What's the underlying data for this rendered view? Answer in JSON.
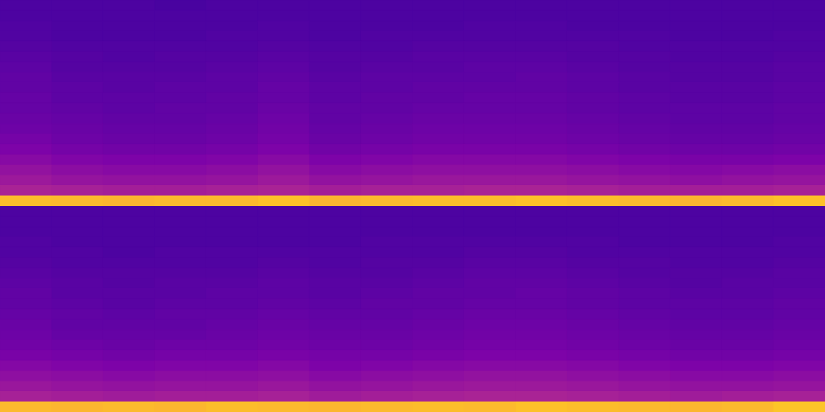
{
  "chart_data": [
    {
      "type": "heatmap",
      "tick_labels": false,
      "color_range": [
        0,
        1
      ],
      "cells": [
        [
          0.13,
          0.13,
          0.13,
          0.12,
          0.13,
          0.13,
          0.13,
          0.13,
          0.13,
          0.13,
          0.13,
          0.13,
          0.13,
          0.13,
          0.13,
          0.13
        ],
        [
          0.13,
          0.13,
          0.13,
          0.13,
          0.13,
          0.13,
          0.13,
          0.13,
          0.13,
          0.13,
          0.13,
          0.13,
          0.13,
          0.13,
          0.13,
          0.13
        ],
        [
          0.14,
          0.13,
          0.13,
          0.13,
          0.13,
          0.14,
          0.13,
          0.13,
          0.13,
          0.14,
          0.14,
          0.13,
          0.13,
          0.13,
          0.13,
          0.13
        ],
        [
          0.14,
          0.13,
          0.13,
          0.13,
          0.14,
          0.14,
          0.13,
          0.14,
          0.14,
          0.14,
          0.14,
          0.14,
          0.14,
          0.13,
          0.13,
          0.14
        ],
        [
          0.15,
          0.14,
          0.14,
          0.14,
          0.14,
          0.15,
          0.14,
          0.14,
          0.15,
          0.15,
          0.15,
          0.15,
          0.14,
          0.14,
          0.14,
          0.14
        ],
        [
          0.16,
          0.15,
          0.14,
          0.15,
          0.15,
          0.16,
          0.15,
          0.15,
          0.16,
          0.16,
          0.16,
          0.15,
          0.15,
          0.14,
          0.14,
          0.15
        ],
        [
          0.17,
          0.15,
          0.15,
          0.15,
          0.16,
          0.17,
          0.15,
          0.16,
          0.16,
          0.17,
          0.17,
          0.16,
          0.15,
          0.15,
          0.15,
          0.16
        ],
        [
          0.18,
          0.16,
          0.16,
          0.16,
          0.17,
          0.18,
          0.16,
          0.17,
          0.17,
          0.17,
          0.18,
          0.17,
          0.16,
          0.15,
          0.15,
          0.16
        ],
        [
          0.18,
          0.17,
          0.16,
          0.17,
          0.17,
          0.19,
          0.17,
          0.17,
          0.18,
          0.18,
          0.18,
          0.17,
          0.16,
          0.16,
          0.16,
          0.17
        ],
        [
          0.19,
          0.17,
          0.17,
          0.17,
          0.18,
          0.19,
          0.17,
          0.18,
          0.18,
          0.19,
          0.19,
          0.18,
          0.17,
          0.16,
          0.16,
          0.17
        ],
        [
          0.19,
          0.18,
          0.17,
          0.18,
          0.18,
          0.2,
          0.18,
          0.18,
          0.19,
          0.19,
          0.19,
          0.18,
          0.17,
          0.17,
          0.17,
          0.18
        ],
        [
          0.2,
          0.19,
          0.18,
          0.18,
          0.19,
          0.21,
          0.18,
          0.19,
          0.2,
          0.2,
          0.2,
          0.19,
          0.18,
          0.17,
          0.17,
          0.18
        ],
        [
          0.21,
          0.2,
          0.19,
          0.19,
          0.2,
          0.22,
          0.19,
          0.2,
          0.21,
          0.21,
          0.21,
          0.2,
          0.19,
          0.18,
          0.18,
          0.19
        ],
        [
          0.23,
          0.21,
          0.2,
          0.2,
          0.21,
          0.23,
          0.2,
          0.21,
          0.22,
          0.22,
          0.22,
          0.21,
          0.2,
          0.19,
          0.19,
          0.2
        ],
        [
          0.25,
          0.23,
          0.22,
          0.22,
          0.23,
          0.25,
          0.22,
          0.23,
          0.24,
          0.24,
          0.24,
          0.23,
          0.22,
          0.21,
          0.21,
          0.22
        ],
        [
          0.28,
          0.26,
          0.25,
          0.25,
          0.26,
          0.28,
          0.25,
          0.26,
          0.27,
          0.27,
          0.27,
          0.26,
          0.25,
          0.24,
          0.24,
          0.25
        ],
        [
          0.31,
          0.29,
          0.28,
          0.28,
          0.29,
          0.31,
          0.28,
          0.29,
          0.3,
          0.3,
          0.3,
          0.29,
          0.28,
          0.27,
          0.28,
          0.29
        ],
        [
          0.34,
          0.32,
          0.31,
          0.31,
          0.32,
          0.34,
          0.31,
          0.32,
          0.33,
          0.33,
          0.33,
          0.32,
          0.31,
          0.3,
          0.31,
          0.32
        ],
        [
          0.38,
          0.37,
          0.36,
          0.36,
          0.37,
          0.38,
          0.36,
          0.37,
          0.37,
          0.38,
          0.38,
          0.37,
          0.36,
          0.36,
          0.36,
          0.37
        ],
        [
          0.86,
          0.85,
          0.84,
          0.85,
          0.85,
          0.87,
          0.84,
          0.85,
          0.86,
          0.86,
          0.87,
          0.86,
          0.85,
          0.84,
          0.85,
          0.87
        ]
      ]
    },
    {
      "type": "heatmap",
      "tick_labels": false,
      "color_range": [
        0,
        1
      ],
      "cells": [
        [
          0.13,
          0.13,
          0.13,
          0.13,
          0.13,
          0.13,
          0.13,
          0.13,
          0.13,
          0.13,
          0.13,
          0.13,
          0.13,
          0.13,
          0.13,
          0.13
        ],
        [
          0.13,
          0.13,
          0.13,
          0.13,
          0.13,
          0.13,
          0.13,
          0.13,
          0.13,
          0.13,
          0.13,
          0.13,
          0.13,
          0.13,
          0.13,
          0.13
        ],
        [
          0.13,
          0.13,
          0.13,
          0.13,
          0.13,
          0.13,
          0.13,
          0.13,
          0.13,
          0.13,
          0.13,
          0.13,
          0.13,
          0.13,
          0.13,
          0.13
        ],
        [
          0.14,
          0.13,
          0.13,
          0.13,
          0.13,
          0.13,
          0.13,
          0.14,
          0.14,
          0.14,
          0.14,
          0.14,
          0.13,
          0.13,
          0.13,
          0.14
        ],
        [
          0.14,
          0.14,
          0.13,
          0.14,
          0.14,
          0.14,
          0.14,
          0.14,
          0.14,
          0.15,
          0.15,
          0.14,
          0.14,
          0.14,
          0.14,
          0.14
        ],
        [
          0.15,
          0.14,
          0.14,
          0.14,
          0.14,
          0.15,
          0.14,
          0.15,
          0.15,
          0.16,
          0.16,
          0.15,
          0.15,
          0.14,
          0.14,
          0.15
        ],
        [
          0.16,
          0.15,
          0.15,
          0.15,
          0.15,
          0.16,
          0.15,
          0.15,
          0.16,
          0.17,
          0.17,
          0.16,
          0.15,
          0.15,
          0.15,
          0.16
        ],
        [
          0.17,
          0.16,
          0.15,
          0.16,
          0.16,
          0.17,
          0.16,
          0.16,
          0.17,
          0.18,
          0.18,
          0.17,
          0.16,
          0.15,
          0.16,
          0.16
        ],
        [
          0.18,
          0.16,
          0.16,
          0.16,
          0.17,
          0.17,
          0.16,
          0.17,
          0.18,
          0.18,
          0.19,
          0.18,
          0.17,
          0.16,
          0.16,
          0.17
        ],
        [
          0.18,
          0.17,
          0.16,
          0.17,
          0.17,
          0.18,
          0.17,
          0.18,
          0.18,
          0.19,
          0.19,
          0.18,
          0.17,
          0.17,
          0.17,
          0.18
        ],
        [
          0.19,
          0.18,
          0.17,
          0.18,
          0.18,
          0.19,
          0.18,
          0.18,
          0.19,
          0.2,
          0.2,
          0.19,
          0.18,
          0.17,
          0.17,
          0.18
        ],
        [
          0.2,
          0.18,
          0.18,
          0.18,
          0.19,
          0.2,
          0.19,
          0.19,
          0.2,
          0.21,
          0.21,
          0.2,
          0.19,
          0.18,
          0.18,
          0.19
        ],
        [
          0.21,
          0.19,
          0.19,
          0.19,
          0.2,
          0.21,
          0.2,
          0.2,
          0.21,
          0.22,
          0.22,
          0.21,
          0.2,
          0.19,
          0.19,
          0.2
        ],
        [
          0.22,
          0.21,
          0.2,
          0.21,
          0.21,
          0.22,
          0.21,
          0.21,
          0.22,
          0.23,
          0.23,
          0.22,
          0.21,
          0.2,
          0.2,
          0.21
        ],
        [
          0.24,
          0.23,
          0.22,
          0.23,
          0.23,
          0.24,
          0.23,
          0.23,
          0.24,
          0.25,
          0.25,
          0.24,
          0.23,
          0.22,
          0.22,
          0.23
        ],
        [
          0.27,
          0.26,
          0.25,
          0.26,
          0.26,
          0.27,
          0.25,
          0.26,
          0.27,
          0.28,
          0.28,
          0.27,
          0.26,
          0.25,
          0.25,
          0.26
        ],
        [
          0.3,
          0.29,
          0.28,
          0.29,
          0.29,
          0.3,
          0.28,
          0.29,
          0.3,
          0.31,
          0.31,
          0.3,
          0.29,
          0.28,
          0.28,
          0.29
        ],
        [
          0.33,
          0.32,
          0.31,
          0.32,
          0.32,
          0.33,
          0.31,
          0.32,
          0.33,
          0.34,
          0.34,
          0.33,
          0.32,
          0.31,
          0.31,
          0.32
        ],
        [
          0.37,
          0.36,
          0.35,
          0.36,
          0.36,
          0.37,
          0.35,
          0.36,
          0.37,
          0.38,
          0.38,
          0.37,
          0.36,
          0.35,
          0.36,
          0.37
        ],
        [
          0.85,
          0.84,
          0.85,
          0.84,
          0.86,
          0.85,
          0.84,
          0.85,
          0.86,
          0.85,
          0.87,
          0.86,
          0.85,
          0.84,
          0.85,
          0.88
        ]
      ]
    }
  ]
}
